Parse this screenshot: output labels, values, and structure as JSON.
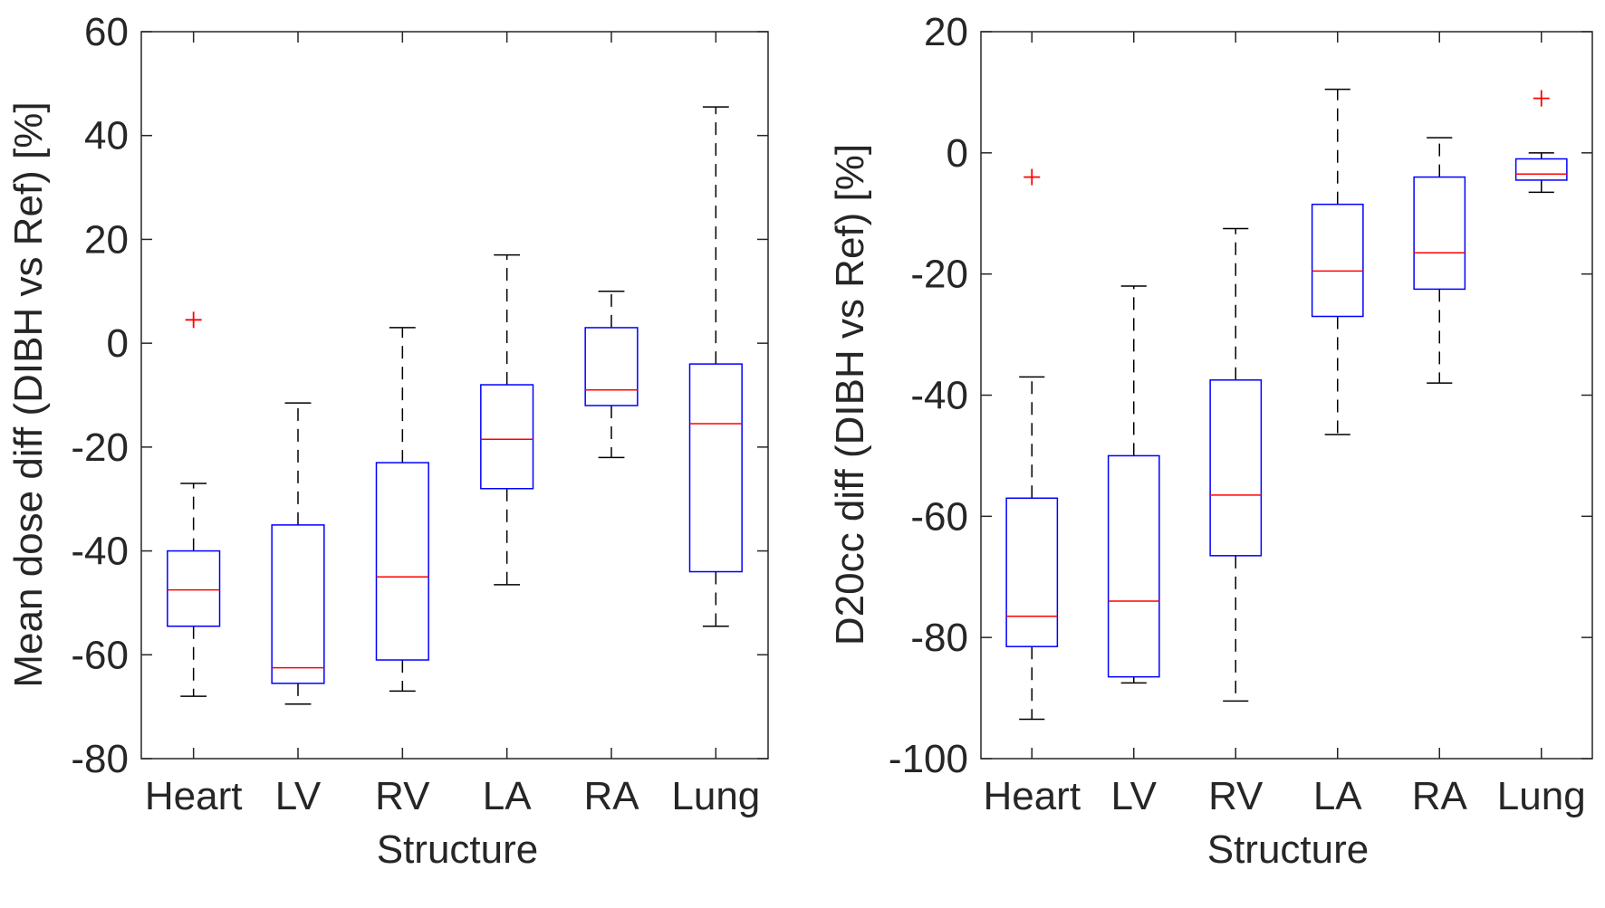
{
  "colors": {
    "box": "#0000ff",
    "median": "#ff0000",
    "whisker": "#000000",
    "outlier": "#ff0000",
    "axis": "#262626"
  },
  "chart_data": [
    {
      "type": "boxplot",
      "xlabel": "Structure",
      "ylabel": "Mean dose diff (DIBH vs Ref) [%]",
      "ylim": [
        -80,
        60
      ],
      "yticks": [
        "60",
        "40",
        "20",
        "0",
        "-20",
        "-40",
        "-60",
        "-80"
      ],
      "categories": [
        "Heart",
        "LV",
        "RV",
        "LA",
        "RA",
        "Lung"
      ],
      "boxes": [
        {
          "name": "Heart",
          "whisker_low": -68,
          "q1": -54.5,
          "median": -47.5,
          "q3": -40,
          "whisker_high": -27,
          "outliers": [
            4.5
          ]
        },
        {
          "name": "LV",
          "whisker_low": -69.5,
          "q1": -65.5,
          "median": -62.5,
          "q3": -35,
          "whisker_high": -11.5,
          "outliers": []
        },
        {
          "name": "RV",
          "whisker_low": -67,
          "q1": -61,
          "median": -45,
          "q3": -23,
          "whisker_high": 3,
          "outliers": []
        },
        {
          "name": "LA",
          "whisker_low": -46.5,
          "q1": -28,
          "median": -18.5,
          "q3": -8,
          "whisker_high": 17,
          "outliers": []
        },
        {
          "name": "RA",
          "whisker_low": -22,
          "q1": -12,
          "median": -9,
          "q3": 3,
          "whisker_high": 10,
          "outliers": []
        },
        {
          "name": "Lung",
          "whisker_low": -54.5,
          "q1": -44,
          "median": -15.5,
          "q3": -4,
          "whisker_high": 45.5,
          "outliers": []
        }
      ]
    },
    {
      "type": "boxplot",
      "xlabel": "Structure",
      "ylabel": "D20cc diff (DIBH vs Ref) [%]",
      "ylim": [
        -100,
        20
      ],
      "yticks": [
        "20",
        "0",
        "-20",
        "-40",
        "-60",
        "-80",
        "-100"
      ],
      "categories": [
        "Heart",
        "LV",
        "RV",
        "LA",
        "RA",
        "Lung"
      ],
      "boxes": [
        {
          "name": "Heart",
          "whisker_low": -93.5,
          "q1": -81.5,
          "median": -76.5,
          "q3": -57,
          "whisker_high": -37,
          "outliers": [
            -4
          ]
        },
        {
          "name": "LV",
          "whisker_low": -87.5,
          "q1": -86.5,
          "median": -74,
          "q3": -50,
          "whisker_high": -22,
          "outliers": []
        },
        {
          "name": "RV",
          "whisker_low": -90.5,
          "q1": -66.5,
          "median": -56.5,
          "q3": -37.5,
          "whisker_high": -12.5,
          "outliers": []
        },
        {
          "name": "LA",
          "whisker_low": -46.5,
          "q1": -27,
          "median": -19.5,
          "q3": -8.5,
          "whisker_high": 10.5,
          "outliers": []
        },
        {
          "name": "RA",
          "whisker_low": -38,
          "q1": -22.5,
          "median": -16.5,
          "q3": -4,
          "whisker_high": 2.5,
          "outliers": []
        },
        {
          "name": "Lung",
          "whisker_low": -6.5,
          "q1": -4.5,
          "median": -3.5,
          "q3": -1,
          "whisker_high": 0,
          "outliers": [
            9
          ]
        }
      ]
    }
  ]
}
